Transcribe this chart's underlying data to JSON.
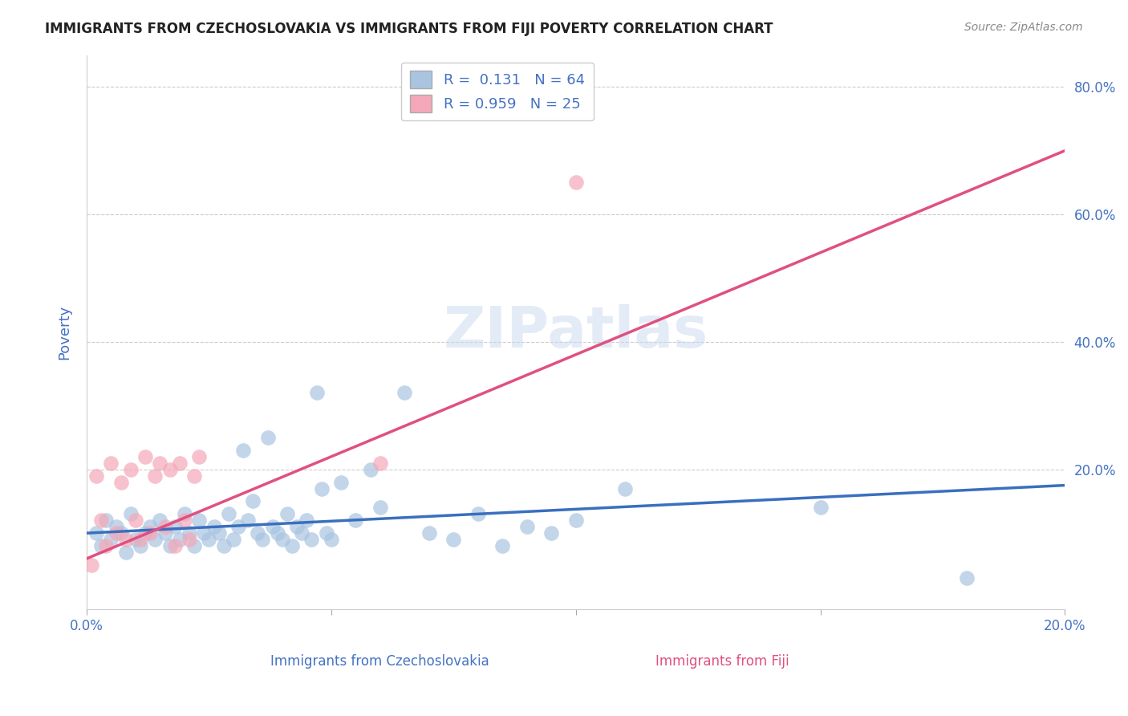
{
  "title": "IMMIGRANTS FROM CZECHOSLOVAKIA VS IMMIGRANTS FROM FIJI POVERTY CORRELATION CHART",
  "source": "Source: ZipAtlas.com",
  "xlabel_blue": "Immigrants from Czechoslovakia",
  "xlabel_pink": "Immigrants from Fiji",
  "ylabel": "Poverty",
  "xlim": [
    0.0,
    0.2
  ],
  "ylim": [
    -0.02,
    0.85
  ],
  "ytick_labels": [
    "",
    "20.0%",
    "40.0%",
    "60.0%",
    "80.0%"
  ],
  "ytick_values": [
    0.0,
    0.2,
    0.4,
    0.6,
    0.8
  ],
  "xtick_labels": [
    "0.0%",
    "",
    "",
    "",
    "20.0%"
  ],
  "xtick_values": [
    0.0,
    0.05,
    0.1,
    0.15,
    0.2
  ],
  "legend_blue_r": "0.131",
  "legend_blue_n": "64",
  "legend_pink_r": "0.959",
  "legend_pink_n": "25",
  "blue_color": "#a8c4e0",
  "pink_color": "#f4a8b8",
  "blue_line_color": "#3a6fbf",
  "pink_line_color": "#e05080",
  "title_color": "#222222",
  "axis_label_color": "#4472c4",
  "tick_color": "#4472c4",
  "watermark": "ZIPatlas",
  "blue_scatter_x": [
    0.002,
    0.003,
    0.004,
    0.005,
    0.006,
    0.007,
    0.008,
    0.009,
    0.01,
    0.011,
    0.012,
    0.013,
    0.014,
    0.015,
    0.016,
    0.017,
    0.018,
    0.019,
    0.02,
    0.021,
    0.022,
    0.023,
    0.024,
    0.025,
    0.026,
    0.027,
    0.028,
    0.029,
    0.03,
    0.031,
    0.032,
    0.033,
    0.034,
    0.035,
    0.036,
    0.037,
    0.038,
    0.039,
    0.04,
    0.041,
    0.042,
    0.043,
    0.044,
    0.045,
    0.046,
    0.047,
    0.048,
    0.049,
    0.05,
    0.052,
    0.055,
    0.058,
    0.06,
    0.065,
    0.07,
    0.075,
    0.08,
    0.085,
    0.09,
    0.095,
    0.1,
    0.11,
    0.15,
    0.18
  ],
  "blue_scatter_y": [
    0.1,
    0.08,
    0.12,
    0.09,
    0.11,
    0.1,
    0.07,
    0.13,
    0.09,
    0.08,
    0.1,
    0.11,
    0.09,
    0.12,
    0.1,
    0.08,
    0.11,
    0.09,
    0.13,
    0.1,
    0.08,
    0.12,
    0.1,
    0.09,
    0.11,
    0.1,
    0.08,
    0.13,
    0.09,
    0.11,
    0.23,
    0.12,
    0.15,
    0.1,
    0.09,
    0.25,
    0.11,
    0.1,
    0.09,
    0.13,
    0.08,
    0.11,
    0.1,
    0.12,
    0.09,
    0.32,
    0.17,
    0.1,
    0.09,
    0.18,
    0.12,
    0.2,
    0.14,
    0.32,
    0.1,
    0.09,
    0.13,
    0.08,
    0.11,
    0.1,
    0.12,
    0.17,
    0.14,
    0.03
  ],
  "pink_scatter_x": [
    0.001,
    0.002,
    0.003,
    0.004,
    0.005,
    0.006,
    0.007,
    0.008,
    0.009,
    0.01,
    0.011,
    0.012,
    0.013,
    0.014,
    0.015,
    0.016,
    0.017,
    0.018,
    0.019,
    0.02,
    0.021,
    0.022,
    0.023,
    0.06,
    0.1
  ],
  "pink_scatter_y": [
    0.05,
    0.19,
    0.12,
    0.08,
    0.21,
    0.1,
    0.18,
    0.09,
    0.2,
    0.12,
    0.09,
    0.22,
    0.1,
    0.19,
    0.21,
    0.11,
    0.2,
    0.08,
    0.21,
    0.12,
    0.09,
    0.19,
    0.22,
    0.21,
    0.65
  ],
  "blue_trendline_x": [
    0.0,
    0.2
  ],
  "blue_trendline_y": [
    0.1,
    0.175
  ],
  "pink_trendline_x": [
    0.0,
    0.2
  ],
  "pink_trendline_y": [
    0.06,
    0.7
  ]
}
